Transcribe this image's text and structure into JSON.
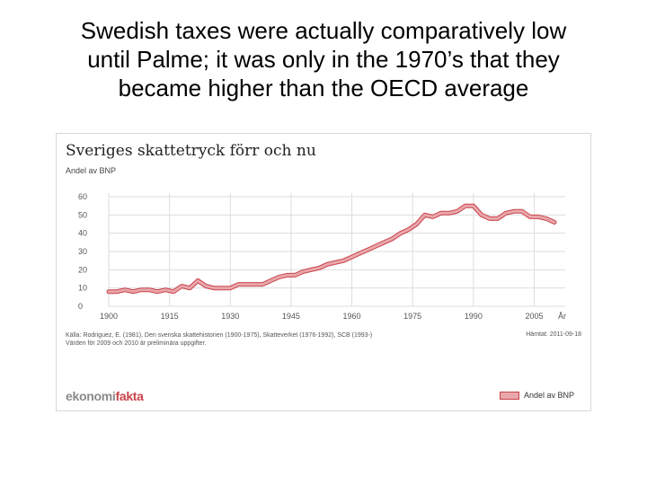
{
  "slide": {
    "title_line1": "Swedish taxes were actually comparatively low",
    "title_line2": "until Palme; it was only in the 1970’s that they",
    "title_line3": "became higher than the OECD average"
  },
  "chart_data": {
    "type": "line",
    "title": "Sveriges skattetryck förr och nu",
    "ylabel": "Andel av BNP",
    "xlabel": "År",
    "ylim": [
      0,
      60
    ],
    "xlim": [
      1900,
      2010
    ],
    "y_ticks": [
      "0",
      "10",
      "20",
      "30",
      "40",
      "50",
      "60"
    ],
    "x_ticks": [
      "1900",
      "1915",
      "1930",
      "1945",
      "1960",
      "1975",
      "1990",
      "2005"
    ],
    "grid": true,
    "legend_position": "bottom-right",
    "series": [
      {
        "name": "Andel av BNP",
        "color": "#e8a7ab",
        "edge_color": "#c9434a",
        "x": [
          1900,
          1902,
          1904,
          1906,
          1908,
          1910,
          1912,
          1914,
          1916,
          1918,
          1920,
          1922,
          1924,
          1926,
          1928,
          1930,
          1932,
          1934,
          1936,
          1938,
          1940,
          1942,
          1944,
          1946,
          1948,
          1950,
          1952,
          1954,
          1956,
          1958,
          1960,
          1962,
          1964,
          1966,
          1968,
          1970,
          1972,
          1974,
          1976,
          1978,
          1980,
          1982,
          1984,
          1986,
          1988,
          1990,
          1992,
          1994,
          1996,
          1998,
          2000,
          2002,
          2004,
          2006,
          2008,
          2010
        ],
        "values": [
          8,
          8,
          9,
          8,
          9,
          9,
          8,
          9,
          8,
          11,
          10,
          14,
          11,
          10,
          10,
          10,
          12,
          12,
          12,
          12,
          14,
          16,
          17,
          17,
          19,
          20,
          21,
          23,
          24,
          25,
          27,
          29,
          31,
          33,
          35,
          37,
          40,
          42,
          45,
          50,
          49,
          51,
          51,
          52,
          55,
          55,
          50,
          48,
          48,
          51,
          52,
          52,
          49,
          49,
          48,
          46
        ]
      }
    ],
    "source_line1": "Källa: Rodriguez, E. (1981), Den svenska skattehistorien (1900-1975), Skatteverket (1976-1992), SCB (1993-)",
    "source_line2": "Värden för 2009 och 2010 är preliminära uppgifter.",
    "fetched": "Hämtat: 2011-09-18"
  },
  "logo": {
    "part1": "ekonomi",
    "part2": "fakta"
  }
}
